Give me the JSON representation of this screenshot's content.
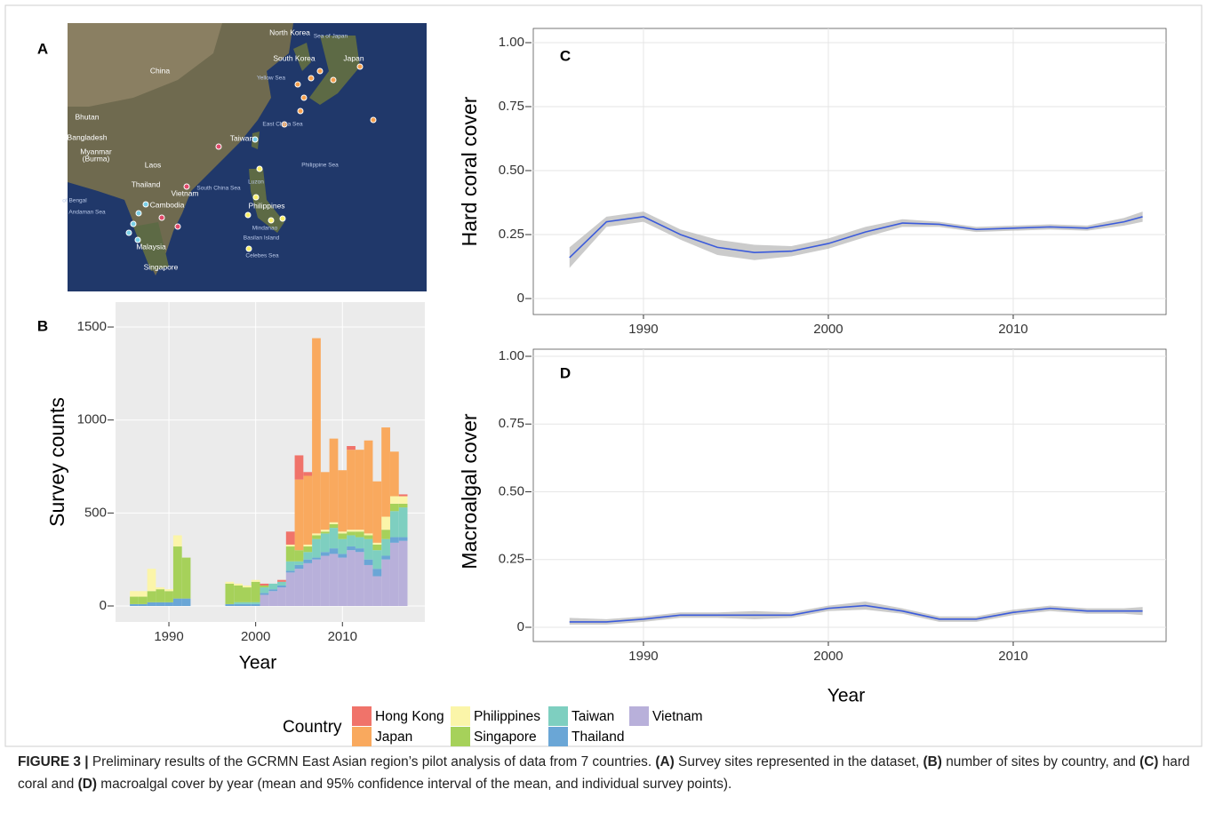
{
  "map": {
    "panel": "A",
    "labels": [
      "China",
      "North Korea",
      "South Korea",
      "Japan",
      "Bhutan",
      "Bangladesh",
      "Myanmar",
      "(Burma)",
      "Laos",
      "Thailand",
      "Vietnam",
      "Cambodia",
      "Taiwan",
      "Philippines",
      "Malaysia",
      "Singapore",
      "Philippine Sea",
      "East China Sea",
      "Yellow Sea",
      "Sea of Japan",
      "Mindanao",
      "Luzon",
      "Celebes Sea",
      "Basilan Island",
      "Andaman Sea",
      "of Bengal",
      "South China Sea"
    ]
  },
  "chart_data": [
    {
      "type": "bar",
      "panel": "B",
      "y_label": "Survey counts",
      "x_label": "Year",
      "legend_title": "Country",
      "x": [
        1986,
        1987,
        1988,
        1989,
        1990,
        1991,
        1992,
        1993,
        1994,
        1995,
        1996,
        1997,
        1998,
        1999,
        2000,
        2001,
        2002,
        2003,
        2004,
        2005,
        2006,
        2007,
        2008,
        2009,
        2010,
        2011,
        2012,
        2013,
        2014,
        2015,
        2016,
        2017
      ],
      "series": [
        {
          "name": "Hong Kong",
          "color": "#f0736a",
          "values": [
            0,
            0,
            0,
            0,
            0,
            0,
            0,
            0,
            0,
            0,
            0,
            0,
            0,
            0,
            0,
            10,
            0,
            10,
            70,
            130,
            20,
            0,
            0,
            0,
            0,
            20,
            0,
            0,
            0,
            0,
            0,
            10
          ]
        },
        {
          "name": "Japan",
          "color": "#f9a95e",
          "values": [
            0,
            0,
            0,
            0,
            0,
            0,
            0,
            0,
            0,
            0,
            0,
            0,
            0,
            0,
            0,
            0,
            0,
            0,
            0,
            380,
            370,
            1050,
            310,
            450,
            330,
            430,
            430,
            500,
            330,
            480,
            240,
            0
          ]
        },
        {
          "name": "Philippines",
          "color": "#fbf5a9",
          "values": [
            30,
            30,
            120,
            10,
            10,
            60,
            0,
            0,
            0,
            0,
            0,
            10,
            10,
            10,
            10,
            0,
            0,
            0,
            10,
            0,
            10,
            10,
            10,
            10,
            10,
            10,
            10,
            10,
            10,
            70,
            40,
            40
          ]
        },
        {
          "name": "Singapore",
          "color": "#a6d15a",
          "values": [
            40,
            40,
            60,
            70,
            60,
            280,
            220,
            0,
            0,
            0,
            0,
            110,
            90,
            80,
            110,
            10,
            0,
            0,
            80,
            60,
            30,
            20,
            10,
            20,
            30,
            20,
            30,
            20,
            30,
            50,
            40,
            20
          ]
        },
        {
          "name": "Taiwan",
          "color": "#7ecfc0",
          "values": [
            0,
            0,
            0,
            0,
            0,
            0,
            0,
            0,
            0,
            0,
            0,
            0,
            10,
            10,
            10,
            30,
            30,
            20,
            50,
            20,
            40,
            100,
            100,
            110,
            80,
            60,
            60,
            110,
            100,
            90,
            140,
            160
          ]
        },
        {
          "name": "Thailand",
          "color": "#6aa6d6",
          "values": [
            10,
            10,
            20,
            20,
            20,
            40,
            40,
            0,
            0,
            0,
            0,
            10,
            10,
            10,
            10,
            10,
            10,
            10,
            10,
            20,
            20,
            10,
            20,
            30,
            20,
            20,
            20,
            30,
            40,
            20,
            30,
            20
          ]
        },
        {
          "name": "Vietnam",
          "color": "#b8b0da",
          "values": [
            0,
            0,
            0,
            0,
            0,
            0,
            0,
            0,
            0,
            0,
            0,
            0,
            0,
            0,
            0,
            60,
            80,
            100,
            180,
            200,
            230,
            250,
            270,
            280,
            260,
            300,
            290,
            220,
            160,
            250,
            340,
            350
          ]
        }
      ],
      "xlim": [
        1983.85,
        2019.5
      ],
      "xticks": [
        1990,
        2000,
        2010
      ],
      "ylim": [
        -86,
        1634
      ],
      "yticks": [
        0,
        500,
        1000,
        1500
      ],
      "grid": true,
      "background": "#ebebeb"
    },
    {
      "type": "line",
      "panel": "C",
      "y_label": "Hard coral cover",
      "color": "#3b5bdb",
      "band_color": "#b5b5b5",
      "x": [
        1986,
        1988,
        1990,
        1992,
        1994,
        1996,
        1998,
        2000,
        2002,
        2004,
        2006,
        2008,
        2010,
        2012,
        2014,
        2016,
        2017
      ],
      "values": [
        0.16,
        0.3,
        0.32,
        0.25,
        0.2,
        0.18,
        0.185,
        0.215,
        0.26,
        0.295,
        0.29,
        0.27,
        0.275,
        0.28,
        0.275,
        0.3,
        0.32
      ],
      "ci_lower": [
        0.12,
        0.28,
        0.3,
        0.23,
        0.17,
        0.15,
        0.165,
        0.195,
        0.24,
        0.28,
        0.28,
        0.26,
        0.265,
        0.27,
        0.265,
        0.285,
        0.3
      ],
      "ci_upper": [
        0.2,
        0.32,
        0.34,
        0.27,
        0.23,
        0.21,
        0.205,
        0.235,
        0.28,
        0.31,
        0.3,
        0.28,
        0.285,
        0.29,
        0.285,
        0.315,
        0.34
      ],
      "xlim": [
        1984.04,
        2018.27
      ],
      "xticks": [
        1990,
        2000,
        2010
      ],
      "ylim": [
        -0.0625,
        1.0556
      ],
      "yticks": [
        0,
        0.25,
        {
          "value": 0.5,
          "label": "0.50"
        },
        0.75,
        {
          "value": 1,
          "label": "1.00"
        }
      ],
      "grid": true,
      "background": "#ffffff"
    },
    {
      "type": "line",
      "panel": "D",
      "y_label": "Macroalgal cover",
      "x_label": "Year",
      "color": "#3b5bdb",
      "band_color": "#b5b5b5",
      "x": [
        1986,
        1988,
        1990,
        1992,
        1994,
        1996,
        1998,
        2000,
        2002,
        2004,
        2006,
        2008,
        2010,
        2012,
        2014,
        2016,
        2017
      ],
      "values": [
        0.02,
        0.02,
        0.03,
        0.045,
        0.045,
        0.045,
        0.045,
        0.07,
        0.08,
        0.06,
        0.03,
        0.03,
        0.055,
        0.07,
        0.06,
        0.06,
        0.06
      ],
      "ci_lower": [
        0.01,
        0.01,
        0.02,
        0.035,
        0.035,
        0.03,
        0.035,
        0.06,
        0.065,
        0.05,
        0.02,
        0.02,
        0.045,
        0.06,
        0.05,
        0.05,
        0.045
      ],
      "ci_upper": [
        0.035,
        0.03,
        0.04,
        0.055,
        0.055,
        0.06,
        0.055,
        0.08,
        0.095,
        0.07,
        0.04,
        0.04,
        0.065,
        0.08,
        0.07,
        0.07,
        0.075
      ],
      "xlim": [
        1984.04,
        2018.27
      ],
      "xticks": [
        1990,
        2000,
        2010
      ],
      "ylim": [
        -0.0525,
        1.0262
      ],
      "yticks": [
        0,
        0.25,
        {
          "value": 0.5,
          "label": "0.50"
        },
        0.75,
        {
          "value": 1,
          "label": "1.00"
        }
      ],
      "grid": true,
      "background": "#ffffff"
    }
  ],
  "caption": {
    "segments": [
      {
        "text": "FIGURE 3 |",
        "bold": true
      },
      {
        "text": " Preliminary results of the GCRMN East Asian region’s pilot analysis of data from 7 countries. "
      },
      {
        "text": "(A)",
        "bold": true
      },
      {
        "text": " Survey sites represented in the dataset, "
      },
      {
        "text": "(B)",
        "bold": true
      },
      {
        "text": " number of sites by country, and "
      },
      {
        "text": "(C)",
        "bold": true
      },
      {
        "text": " hard coral and "
      },
      {
        "text": "(D)",
        "bold": true
      },
      {
        "text": " macroalgal cover by year (mean and 95% confidence interval of the mean, and individual survey points)."
      }
    ]
  }
}
